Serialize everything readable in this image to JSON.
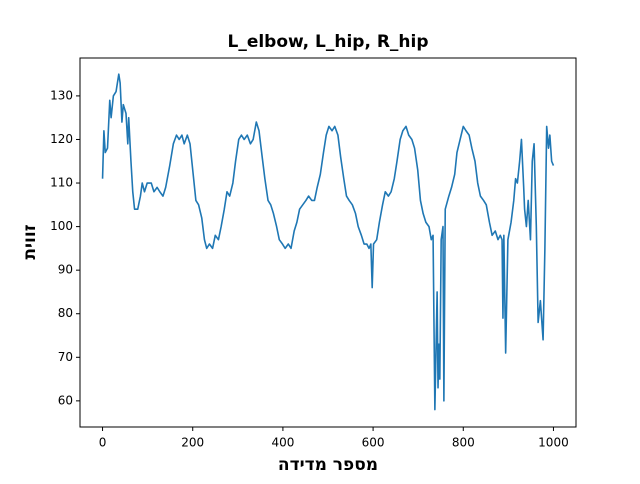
{
  "chart_data": {
    "type": "line",
    "title": "L_elbow, L_hip, R_hip",
    "x_label": "מספר מדידה",
    "y_label": "זווית",
    "xlim": [
      -50,
      1050
    ],
    "ylim": [
      54,
      138.7
    ],
    "xticks": [
      0,
      200,
      400,
      600,
      800,
      1000
    ],
    "yticks": [
      60,
      70,
      80,
      90,
      100,
      110,
      120,
      130
    ],
    "x": [
      0,
      3,
      6,
      11,
      16,
      19,
      24,
      30,
      36,
      39,
      43,
      46,
      52,
      56,
      58,
      63,
      67,
      71,
      78,
      84,
      88,
      93,
      99,
      108,
      114,
      121,
      127,
      134,
      140,
      149,
      157,
      164,
      170,
      176,
      181,
      188,
      194,
      201,
      207,
      213,
      220,
      226,
      231,
      237,
      244,
      250,
      257,
      263,
      270,
      276,
      282,
      289,
      295,
      302,
      308,
      314,
      321,
      328,
      334,
      341,
      347,
      354,
      360,
      367,
      373,
      379,
      386,
      392,
      399,
      405,
      412,
      418,
      425,
      431,
      437,
      444,
      451,
      457,
      464,
      470,
      476,
      483,
      490,
      496,
      502,
      509,
      515,
      522,
      528,
      535,
      541,
      547,
      554,
      561,
      567,
      574,
      580,
      586,
      591,
      595,
      598,
      601,
      608,
      614,
      621,
      627,
      634,
      640,
      647,
      653,
      660,
      666,
      673,
      679,
      686,
      692,
      699,
      705,
      711,
      717,
      724,
      729,
      733,
      737,
      742,
      744,
      746,
      748,
      751,
      755,
      757,
      760,
      768,
      774,
      781,
      786,
      793,
      800,
      806,
      813,
      819,
      826,
      832,
      838,
      845,
      851,
      858,
      864,
      871,
      877,
      882,
      886,
      888,
      890,
      894,
      899,
      906,
      912,
      916,
      920,
      925,
      929,
      934,
      936,
      940,
      944,
      949,
      953,
      957,
      962,
      966,
      971,
      977,
      981,
      985,
      989,
      992,
      996,
      1000
    ],
    "series": [
      {
        "name": "L_elbow, L_hip, R_hip",
        "color": "#1f77b4",
        "values": [
          111,
          122,
          117,
          118,
          129,
          125,
          130,
          131,
          135,
          133,
          124,
          128,
          126,
          119,
          125,
          115,
          108,
          104,
          104,
          107,
          110,
          108,
          110,
          110,
          108,
          109,
          108,
          107,
          109,
          114,
          119,
          121,
          120,
          121,
          119,
          121,
          119,
          112,
          106,
          105,
          102,
          97,
          95,
          96,
          95,
          98,
          97,
          100,
          104,
          108,
          107,
          110,
          115,
          120,
          121,
          120,
          121,
          119,
          120,
          124,
          122,
          116,
          111,
          106,
          105,
          103,
          100,
          97,
          96,
          95,
          96,
          95,
          99,
          101,
          104,
          105,
          106,
          107,
          106,
          106,
          109,
          112,
          117,
          121,
          123,
          122,
          123,
          121,
          116,
          111,
          107,
          106,
          105,
          103,
          100,
          98,
          96,
          96,
          95,
          96,
          86,
          96,
          97,
          101,
          105,
          108,
          107,
          108,
          111,
          115,
          120,
          122,
          123,
          121,
          120,
          118,
          113,
          106,
          103,
          101,
          100,
          97,
          98,
          58,
          85,
          63,
          73,
          65,
          97,
          100,
          60,
          104,
          107,
          109,
          112,
          117,
          120,
          123,
          122,
          121,
          118,
          115,
          110,
          107,
          106,
          105,
          101,
          98,
          99,
          97,
          98,
          97,
          79,
          98,
          71,
          97,
          101,
          106,
          111,
          110,
          115,
          120,
          109,
          104,
          100,
          106,
          97,
          115,
          119,
          100,
          78,
          83,
          74,
          95,
          123,
          118,
          121,
          115,
          114
        ]
      }
    ]
  }
}
